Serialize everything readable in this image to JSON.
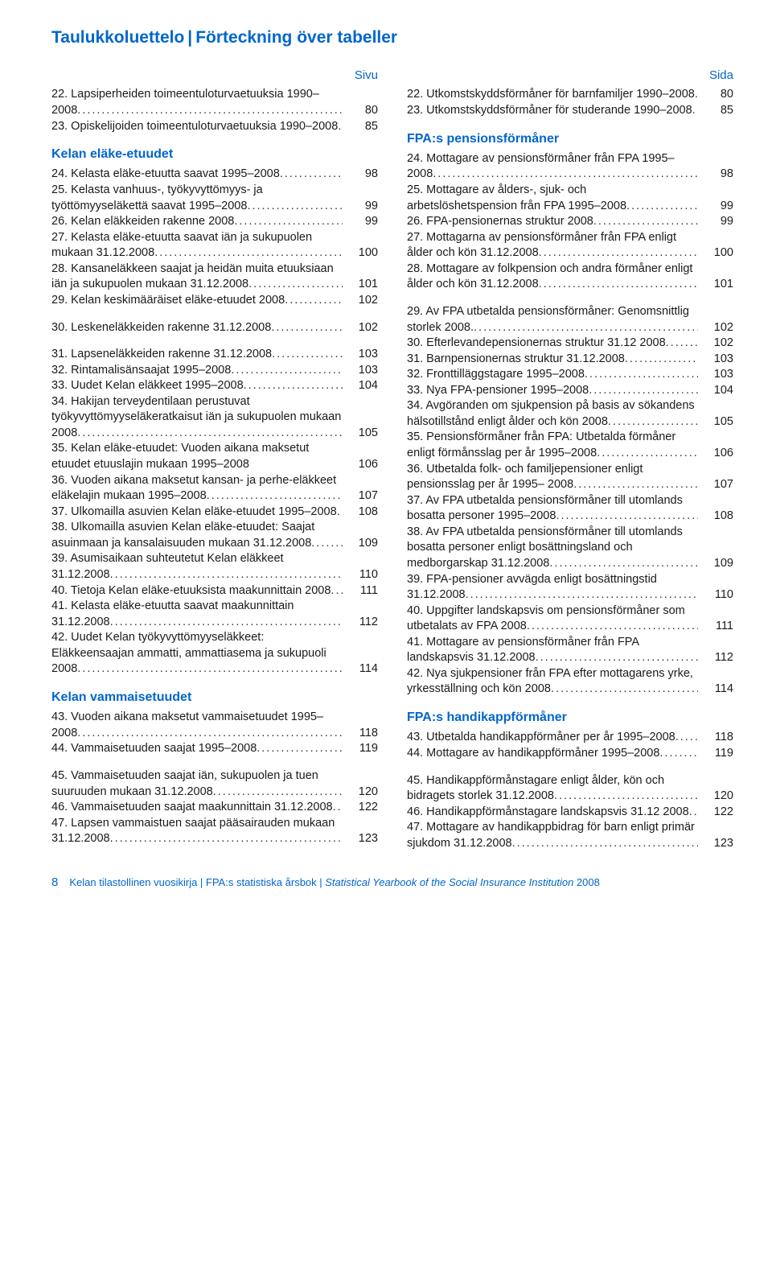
{
  "title_fi": "Taulukkoluettelo",
  "title_sv": "Förteckning över tabeller",
  "page_header_fi": "Sivu",
  "page_header_sv": "Sida",
  "footer_pagenum": "8",
  "footer_part1": "Kelan tilastollinen vuosikirja | FPA:s statistiska årsbok | ",
  "footer_part2_italic": "Statistical Yearbook of the Social Insurance Institution",
  "footer_part3": " 2008",
  "colors": {
    "accent": "#0066cc",
    "text": "#1a1a1a",
    "background": "#ffffff"
  },
  "left": {
    "intro": [
      {
        "n": "22.",
        "t": "Lapsiperheiden toimeentuloturvaetuuksia 1990–2008",
        "p": "80"
      },
      {
        "n": "23.",
        "t": "Opiskelijoiden toimeentuloturvaetuuksia 1990–2008",
        "p": "85"
      }
    ],
    "sec1_title": "Kelan eläke-etuudet",
    "sec1": [
      {
        "n": "24.",
        "t": "Kelasta eläke-etuutta saavat 1995–2008",
        "p": "98",
        "lead": ".."
      },
      {
        "n": "25.",
        "t": "Kelasta vanhuus-, työkyvyttömyys- ja työttömyyseläkettä saavat 1995–2008",
        "p": "99"
      },
      {
        "n": "26.",
        "t": "Kelan eläkkeiden rakenne 2008",
        "p": "99"
      },
      {
        "n": "27.",
        "t": "Kelasta eläke-etuutta saavat iän ja sukupuolen mukaan 31.12.2008",
        "p": "100"
      },
      {
        "n": "28.",
        "t": "Kansaneläkkeen saajat ja heidän muita etuuksiaan iän ja sukupuolen mukaan 31.12.2008",
        "p": "101"
      },
      {
        "n": "29.",
        "t": "Kelan keskimääräiset eläke-etuudet 2008",
        "p": "102",
        "lead": "..."
      },
      {
        "n": "30.",
        "t": "Leskeneläkkeiden rakenne 31.12.2008",
        "p": "102",
        "lead": "....",
        "gapBefore": true
      },
      {
        "n": "31.",
        "t": "Lapseneläkkeiden rakenne 31.12.2008",
        "p": "103",
        "gapBefore": true
      },
      {
        "n": "32.",
        "t": "Rintamalisänsaajat 1995–2008",
        "p": "103"
      },
      {
        "n": "33.",
        "t": "Uudet Kelan eläkkeet 1995–2008",
        "p": "104"
      },
      {
        "n": "34.",
        "t": "Hakijan terveydentilaan perustuvat työkyvyttömyyseläkeratkaisut iän ja sukupuolen mukaan 2008",
        "p": "105"
      },
      {
        "n": "35.",
        "t": "Kelan eläke-etuudet: Vuoden aikana maksetut etuudet etuuslajin mukaan 1995–2008",
        "p": "106",
        "noleader": true
      },
      {
        "n": "36.",
        "t": "Vuoden aikana maksetut kansan- ja perhe-eläkkeet eläkelajin mukaan 1995–2008",
        "p": "107",
        "lead": "...."
      },
      {
        "n": "37.",
        "t": "Ulkomailla asuvien Kelan eläke-etuudet 1995–2008",
        "p": "108"
      },
      {
        "n": "38.",
        "t": "Ulkomailla asuvien Kelan eläke-etuudet: Saajat asuinmaan ja kansalaisuuden mukaan 31.12.2008",
        "p": "109"
      },
      {
        "n": "39.",
        "t": "Asumisaikaan suhteutetut Kelan eläkkeet 31.12.2008",
        "p": "110"
      },
      {
        "n": "40.",
        "t": "Tietoja Kelan eläke-etuuksista maakunnittain 2008",
        "p": "111"
      },
      {
        "n": "41.",
        "t": "Kelasta eläke-etuutta saavat maakunnittain 31.12.2008",
        "p": "112"
      },
      {
        "n": "42.",
        "t": "Uudet Kelan työkyvyttömyyseläkkeet: Eläkkeensaajan ammatti, ammattiasema ja sukupuoli 2008",
        "p": "114"
      }
    ],
    "sec2_title": "Kelan vammaisetuudet",
    "sec2": [
      {
        "n": "43.",
        "t": "Vuoden aikana maksetut vammaisetuudet 1995–2008",
        "p": "118"
      },
      {
        "n": "44.",
        "t": "Vammaisetuuden saajat 1995–2008",
        "p": "119"
      },
      {
        "n": "45.",
        "t": "Vammaisetuuden saajat iän, sukupuolen ja tuen suuruuden mukaan 31.12.2008",
        "p": "120",
        "gapBefore": true
      },
      {
        "n": "46.",
        "t": "Vammaisetuuden saajat maakunnittain 31.12.2008",
        "p": "122"
      },
      {
        "n": "47.",
        "t": "Lapsen vammaistuen saajat pääsairauden mukaan 31.12.2008",
        "p": "123"
      }
    ]
  },
  "right": {
    "intro": [
      {
        "n": "22.",
        "t": "Utkomstskyddsförmåner för barnfamiljer 1990–2008",
        "p": "80"
      },
      {
        "n": "23.",
        "t": "Utkomstskyddsförmåner för studerande 1990–2008",
        "p": "85"
      }
    ],
    "sec1_title": "FPA:s pensionsförmåner",
    "sec1": [
      {
        "n": "24.",
        "t": "Mottagare av pensionsförmåner från FPA 1995–2008",
        "p": "98"
      },
      {
        "n": "25.",
        "t": "Mottagare av ålders-, sjuk- och arbetslöshetspension från FPA 1995–2008",
        "p": "99"
      },
      {
        "n": "26.",
        "t": "FPA-pensionernas struktur 2008",
        "p": "99"
      },
      {
        "n": "27.",
        "t": "Mottagarna av pensionsförmåner från FPA enligt ålder och kön 31.12.2008",
        "p": "100"
      },
      {
        "n": "28.",
        "t": "Mottagare av folkpension och andra förmåner enligt ålder och kön 31.12.2008",
        "p": "101"
      },
      {
        "n": "29.",
        "t": "Av FPA utbetalda pensionsförmåner: Genomsnittlig storlek 2008.",
        "p": "102",
        "gapBefore": true
      },
      {
        "n": "30.",
        "t": "Efterlevandepensionernas struktur 31.12 2008",
        "p": "102"
      },
      {
        "n": "31.",
        "t": "Barnpensionernas struktur 31.12.2008",
        "p": "103"
      },
      {
        "n": "32.",
        "t": "Fronttilläggstagare 1995–2008",
        "p": "103"
      },
      {
        "n": "33.",
        "t": "Nya FPA-pensioner 1995–2008",
        "p": "104"
      },
      {
        "n": "34.",
        "t": "Avgöranden om sjukpension på basis av sökandens hälsotillstånd enligt ålder och kön 2008",
        "p": "105"
      },
      {
        "n": "35.",
        "t": "Pensionsförmåner från FPA: Utbetalda förmåner enligt förmånsslag per år 1995–2008",
        "p": "106",
        "lead": "..."
      },
      {
        "n": "36.",
        "t": "Utbetalda folk- och familjepensioner enligt pensionsslag per år 1995– 2008",
        "p": "107"
      },
      {
        "n": "37.",
        "t": "Av FPA utbetalda pensionsförmåner till utomlands bosatta personer 1995–2008",
        "p": "108"
      },
      {
        "n": "38.",
        "t": "Av FPA utbetalda pensionsförmåner till utomlands bosatta personer enligt bosättningsland och medborgarskap 31.12.2008",
        "p": "109"
      },
      {
        "n": "39.",
        "t": "FPA-pensioner avvägda enligt bosättningstid 31.12.2008",
        "p": "110"
      },
      {
        "n": "40.",
        "t": "Uppgifter landskapsvis om pensionsförmåner som utbetalats av FPA 2008",
        "p": "111"
      },
      {
        "n": "41.",
        "t": "Mottagare av pensionsförmåner från FPA landskapsvis 31.12.2008",
        "p": "112"
      },
      {
        "n": "42.",
        "t": "Nya sjukpensioner från FPA efter mottagarens yrke, yrkesställning och kön 2008",
        "p": "114"
      }
    ],
    "sec2_title": "FPA:s handikappförmåner",
    "sec2": [
      {
        "n": "43.",
        "t": "Utbetalda handikappförmåner per år 1995–2008",
        "p": "118"
      },
      {
        "n": "44.",
        "t": "Mottagare av handikappförmåner 1995–2008",
        "p": "119"
      },
      {
        "n": "45.",
        "t": "Handikappförmånstagare enligt ålder, kön och bidragets storlek 31.12.2008",
        "p": "120",
        "gapBefore": true
      },
      {
        "n": "46.",
        "t": "Handikappförmånstagare landskapsvis 31.12 2008",
        "p": "122"
      },
      {
        "n": "47.",
        "t": "Mottagare av handikappbidrag för barn enligt primär sjukdom 31.12.2008",
        "p": "123"
      }
    ]
  }
}
